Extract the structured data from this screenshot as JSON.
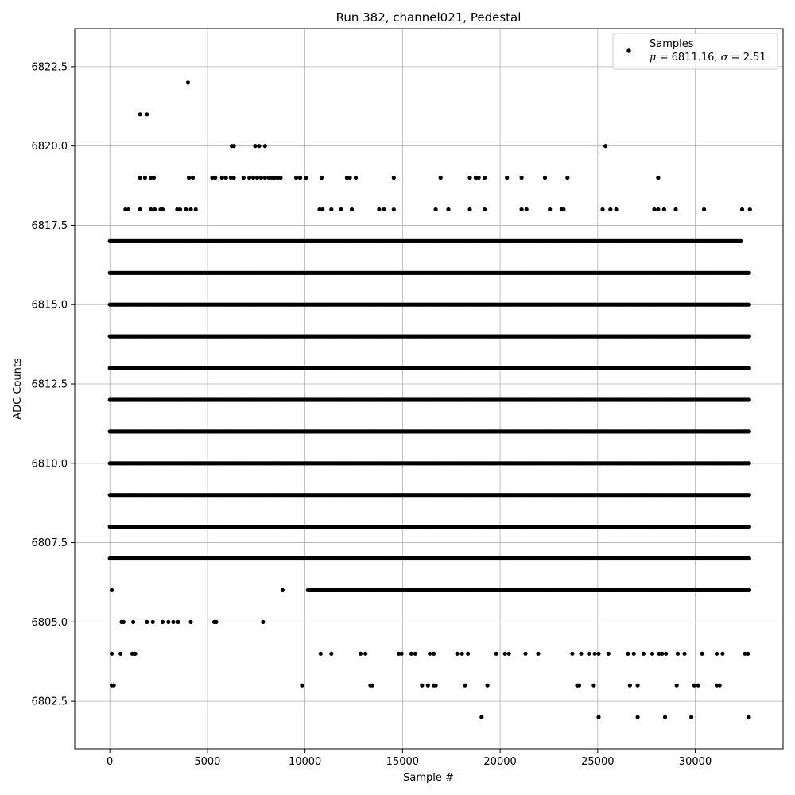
{
  "chart_data": {
    "type": "scatter",
    "title": "Run 382, channel021, Pedestal",
    "xlabel": "Sample #",
    "ylabel": "ADC Counts",
    "xlim": [
      -1800,
      34500
    ],
    "ylim": [
      6801.0,
      6823.7
    ],
    "xticks": [
      0,
      5000,
      10000,
      15000,
      20000,
      25000,
      30000
    ],
    "yticks": [
      6802.5,
      6805.0,
      6807.5,
      6810.0,
      6812.5,
      6815.0,
      6817.5,
      6820.0,
      6822.5
    ],
    "ytick_labels": [
      "6802.5",
      "6805.0",
      "6807.5",
      "6810.0",
      "6812.5",
      "6815.0",
      "6817.5",
      "6820.0",
      "6822.5"
    ],
    "grid": true,
    "legend": {
      "placement": "top-right",
      "series_name": "Samples",
      "stats_mu": "6811.16",
      "stats_sigma": "2.51"
    },
    "marker_color": "#000000",
    "sample_count": 32768,
    "series": [
      {
        "name": "Samples",
        "levels": [
          {
            "y": 6802,
            "x": [
              19050,
              25050,
              27050,
              28450,
              29800,
              32750
            ]
          },
          {
            "y": 6803,
            "x": [
              100,
              200,
              9850,
              13350,
              13450,
              16000,
              16300,
              16600,
              16700,
              18200,
              19350,
              23950,
              24050,
              24800,
              26650,
              27050,
              29050,
              29950,
              30150,
              31100,
              31250
            ]
          },
          {
            "y": 6804,
            "x": [
              100,
              550,
              1150,
              1250,
              1300,
              10800,
              11350,
              12850,
              13100,
              14800,
              14950,
              15450,
              15650,
              16400,
              16600,
              17800,
              18050,
              18350,
              19800,
              20250,
              20450,
              21300,
              21950,
              23700,
              24150,
              24550,
              24850,
              25050,
              25550,
              26550,
              26850,
              27350,
              27800,
              28150,
              28300,
              28500,
              29100,
              29450,
              30350,
              31100,
              31400,
              32550,
              32700
            ]
          },
          {
            "y": 6805,
            "x": [
              600,
              700,
              1200,
              1900,
              2200,
              2700,
              3000,
              3250,
              3500,
              4150,
              5350,
              5450,
              7850
            ]
          },
          {
            "y": 6806,
            "x": [
              100,
              8850
            ]
          },
          {
            "y": 6807,
            "x": []
          },
          {
            "y": 6818,
            "x": [
              800,
              950,
              1550,
              2100,
              2300,
              2600,
              2700,
              3450,
              3600,
              3900,
              4150,
              4400,
              10750,
              10900,
              11350,
              11850,
              12400,
              13800,
              14050,
              14550,
              16700,
              17350,
              18450,
              19200,
              21100,
              21350,
              22550,
              23150,
              23250,
              25250,
              25650,
              25950,
              27900,
              28100,
              28400,
              29000,
              30450,
              32400,
              32800
            ]
          },
          {
            "y": 6819,
            "x": [
              1550,
              1800,
              2100,
              2250,
              4050,
              4250,
              5250,
              5400,
              5750,
              5950,
              6200,
              6350,
              6850,
              7150,
              7350,
              7550,
              7750,
              7950,
              8150,
              8300,
              8450,
              8600,
              8750,
              9550,
              9750,
              10050,
              10850,
              12150,
              12300,
              12600,
              14550,
              16950,
              18450,
              18750,
              18900,
              19200,
              20350,
              21100,
              22300,
              23450,
              28100
            ]
          },
          {
            "y": 6820,
            "x": [
              6250,
              6350,
              7450,
              7650,
              7950,
              25400
            ]
          },
          {
            "y": 6821,
            "x": [
              1550,
              1900
            ]
          },
          {
            "y": 6822,
            "x": [
              4000
            ]
          }
        ],
        "dense_levels": [
          {
            "y": 6806,
            "x_range": [
              10150,
              32800
            ]
          },
          {
            "y": 6807,
            "x_range": [
              0,
              32800
            ]
          },
          {
            "y": 6808,
            "x_range": [
              0,
              32800
            ]
          },
          {
            "y": 6809,
            "x_range": [
              0,
              32800
            ]
          },
          {
            "y": 6810,
            "x_range": [
              0,
              32800
            ]
          },
          {
            "y": 6811,
            "x_range": [
              0,
              32800
            ]
          },
          {
            "y": 6812,
            "x_range": [
              0,
              32800
            ]
          },
          {
            "y": 6813,
            "x_range": [
              0,
              32800
            ]
          },
          {
            "y": 6814,
            "x_range": [
              0,
              32800
            ]
          },
          {
            "y": 6815,
            "x_range": [
              0,
              32800
            ]
          },
          {
            "y": 6816,
            "x_range": [
              0,
              32800
            ]
          },
          {
            "y": 6817,
            "x_range": [
              0,
              32350
            ]
          }
        ]
      }
    ]
  }
}
